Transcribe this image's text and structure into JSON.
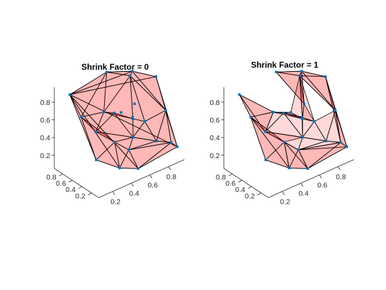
{
  "chart_data": [
    {
      "type": "scatter",
      "title": "Shrink Factor = 0",
      "xlabel": "",
      "ylabel": "",
      "zlabel": "",
      "grid": false,
      "face_color": "#ff0000",
      "face_alpha": 0.15,
      "edge_color": "#000000",
      "marker_color": "#0072BD",
      "x_ticks": [
        "0.2",
        "0.4",
        "0.6",
        "0.8"
      ],
      "y_ticks": [
        "0.2",
        "0.4",
        "0.6",
        "0.8"
      ],
      "z_ticks": [
        "0.2",
        "0.4",
        "0.6",
        "0.8"
      ],
      "xlim": [
        0.05,
        0.97
      ],
      "ylim": [
        0.05,
        0.97
      ],
      "zlim": [
        0.05,
        0.97
      ],
      "x": [
        0.18,
        0.92,
        0.1,
        0.95,
        0.85,
        0.5,
        0.55,
        0.12,
        0.9,
        0.88,
        0.35,
        0.6,
        0.3,
        0.75,
        0.45,
        0.7,
        0.4,
        0.65,
        0.2,
        0.8,
        0.5,
        0.62,
        0.55,
        0.72
      ],
      "y": [
        0.9,
        0.1,
        0.2,
        0.6,
        0.9,
        0.1,
        0.85,
        0.55,
        0.3,
        0.15,
        0.3,
        0.4,
        0.1,
        0.75,
        0.2,
        0.35,
        0.62,
        0.5,
        0.4,
        0.3,
        0.6,
        0.45,
        0.55,
        0.6
      ],
      "z": [
        0.85,
        0.2,
        0.4,
        0.8,
        0.8,
        0.15,
        0.95,
        0.75,
        0.55,
        0.25,
        0.45,
        0.35,
        0.25,
        0.85,
        0.35,
        0.5,
        0.65,
        0.5,
        0.6,
        0.25,
        0.6,
        0.55,
        0.6,
        0.6
      ]
    },
    {
      "type": "scatter",
      "title": "Shrink Factor = 1",
      "xlabel": "",
      "ylabel": "",
      "zlabel": "",
      "grid": false,
      "face_color": "#ff0000",
      "face_alpha": 0.15,
      "edge_color": "#000000",
      "marker_color": "#0072BD",
      "x_ticks": [
        "0.2",
        "0.4",
        "0.6",
        "0.8"
      ],
      "y_ticks": [
        "0.2",
        "0.4",
        "0.6",
        "0.8"
      ],
      "z_ticks": [
        "0.2",
        "0.4",
        "0.6",
        "0.8"
      ],
      "xlim": [
        0.05,
        0.97
      ],
      "ylim": [
        0.05,
        0.97
      ],
      "zlim": [
        0.05,
        0.97
      ],
      "x": [
        0.18,
        0.92,
        0.1,
        0.95,
        0.85,
        0.5,
        0.55,
        0.12,
        0.9,
        0.88,
        0.35,
        0.6,
        0.3,
        0.75,
        0.45,
        0.7,
        0.4,
        0.65,
        0.2,
        0.8,
        0.5,
        0.62,
        0.55,
        0.72
      ],
      "y": [
        0.9,
        0.1,
        0.2,
        0.6,
        0.9,
        0.1,
        0.85,
        0.55,
        0.3,
        0.15,
        0.3,
        0.4,
        0.1,
        0.75,
        0.2,
        0.35,
        0.62,
        0.5,
        0.4,
        0.3,
        0.6,
        0.45,
        0.55,
        0.6
      ],
      "z": [
        0.85,
        0.2,
        0.4,
        0.8,
        0.8,
        0.15,
        0.95,
        0.75,
        0.55,
        0.25,
        0.45,
        0.35,
        0.25,
        0.85,
        0.35,
        0.5,
        0.65,
        0.5,
        0.6,
        0.25,
        0.6,
        0.55,
        0.6,
        0.6
      ]
    }
  ]
}
